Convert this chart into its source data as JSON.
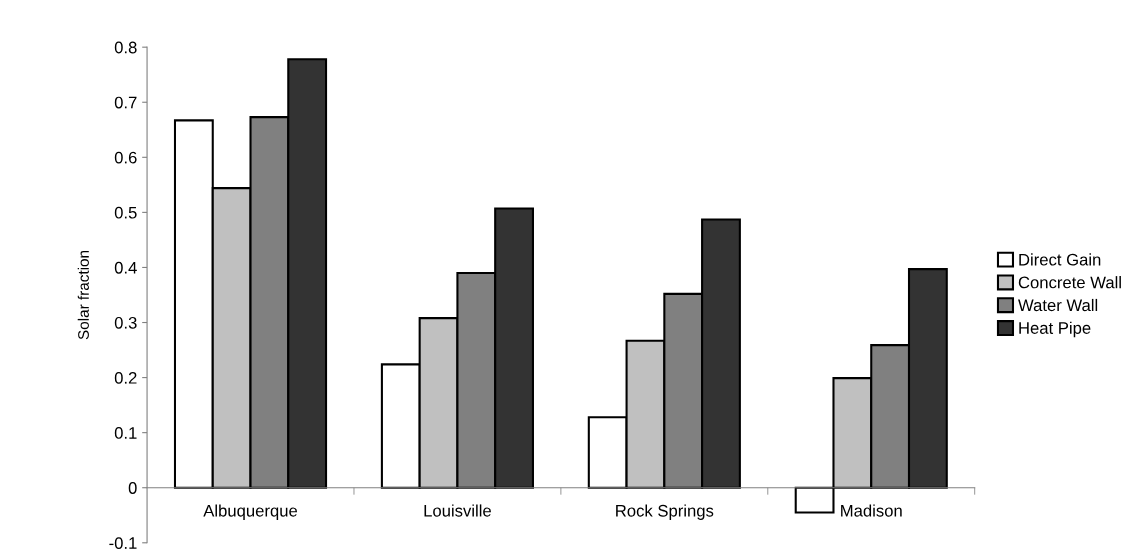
{
  "chart_data": {
    "type": "bar",
    "ylabel": "Solar fraction",
    "categories": [
      "Albuquerque",
      "Louisville",
      "Rock Springs",
      "Madison"
    ],
    "series": [
      {
        "name": "Direct Gain",
        "color": "#ffffff",
        "values": [
          0.667,
          0.224,
          0.128,
          -0.045
        ]
      },
      {
        "name": "Concrete Wall",
        "color": "#c0c0c0",
        "values": [
          0.544,
          0.308,
          0.267,
          0.199
        ]
      },
      {
        "name": "Water Wall",
        "color": "#808080",
        "values": [
          0.673,
          0.39,
          0.352,
          0.259
        ]
      },
      {
        "name": "Heat Pipe",
        "color": "#333333",
        "values": [
          0.778,
          0.507,
          0.487,
          0.397
        ]
      }
    ],
    "ylim": [
      -0.1,
      0.8
    ],
    "yticks": [
      -0.1,
      0,
      0.1,
      0.2,
      0.3,
      0.4,
      0.5,
      0.6,
      0.7,
      0.8
    ],
    "grid": false,
    "legend": "right"
  }
}
